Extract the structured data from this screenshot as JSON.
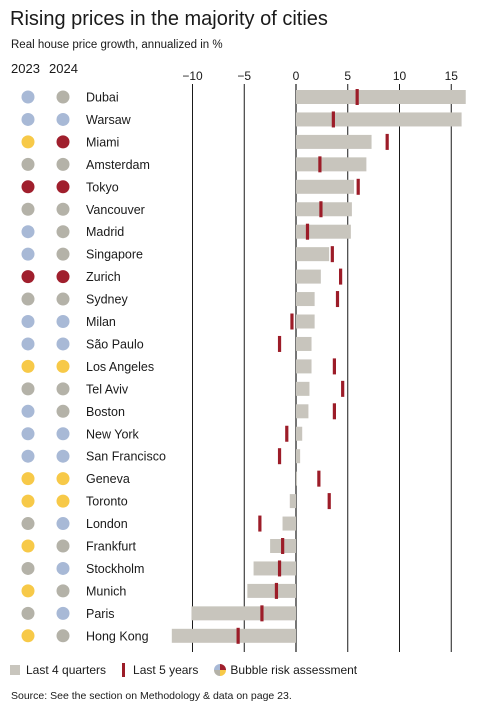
{
  "header": {
    "title": "Rising prices in the majority of cities",
    "subtitle": "Real house price growth, annualized in %",
    "year_2023": "2023",
    "year_2024": "2024"
  },
  "legend": {
    "last4q": "Last 4 quarters",
    "last5y": "Last 5 years",
    "bubble": "Bubble risk assessment"
  },
  "source": "Source: See the section on Methodology & data on page 23.",
  "colors": {
    "bar": "#c8c5bd",
    "marker": "#9c1c28",
    "risk_blue": "#a8b9d6",
    "risk_gray": "#b4b2a8",
    "risk_yellow": "#f7c948",
    "risk_red": "#a01f2d"
  },
  "chart_data": {
    "type": "bar",
    "orientation": "horizontal",
    "xlim": [
      -12,
      16
    ],
    "ticks": [
      -10,
      -5,
      0,
      5,
      10,
      15
    ],
    "tick_labels": [
      "−10",
      "−5",
      "0",
      "5",
      "10",
      "15"
    ],
    "categories": [
      "Dubai",
      "Warsaw",
      "Miami",
      "Amsterdam",
      "Tokyo",
      "Vancouver",
      "Madrid",
      "Singapore",
      "Zurich",
      "Sydney",
      "Milan",
      "São Paulo",
      "Los Angeles",
      "Tel Aviv",
      "Boston",
      "New York",
      "San Francisco",
      "Geneva",
      "Toronto",
      "London",
      "Frankfurt",
      "Stockholm",
      "Munich",
      "Paris",
      "Hong Kong"
    ],
    "series": [
      {
        "name": "Last 4 quarters",
        "values": [
          16.4,
          16.0,
          7.3,
          6.8,
          5.6,
          5.4,
          5.3,
          3.2,
          2.4,
          1.8,
          1.8,
          1.5,
          1.5,
          1.3,
          1.2,
          0.6,
          0.4,
          0.1,
          -0.6,
          -1.3,
          -2.5,
          -4.1,
          -4.7,
          -10.1,
          -12.0
        ]
      },
      {
        "name": "Last 5 years",
        "values": [
          5.9,
          3.6,
          8.8,
          2.3,
          6.0,
          2.4,
          1.1,
          3.5,
          4.3,
          4.0,
          -0.4,
          -1.6,
          3.7,
          4.5,
          3.7,
          -0.9,
          -1.6,
          2.2,
          3.2,
          -3.5,
          -1.3,
          -1.6,
          -1.9,
          -3.3,
          -5.6
        ]
      }
    ],
    "bubble_risk_2023": [
      "blue",
      "blue",
      "yellow",
      "gray",
      "red",
      "gray",
      "blue",
      "blue",
      "red",
      "gray",
      "blue",
      "blue",
      "yellow",
      "gray",
      "blue",
      "blue",
      "blue",
      "yellow",
      "yellow",
      "gray",
      "yellow",
      "gray",
      "yellow",
      "gray",
      "yellow"
    ],
    "bubble_risk_2024": [
      "gray",
      "blue",
      "red",
      "gray",
      "red",
      "gray",
      "gray",
      "gray",
      "red",
      "gray",
      "blue",
      "blue",
      "yellow",
      "gray",
      "gray",
      "blue",
      "blue",
      "yellow",
      "yellow",
      "blue",
      "gray",
      "blue",
      "gray",
      "blue",
      "gray"
    ],
    "grid": true
  }
}
